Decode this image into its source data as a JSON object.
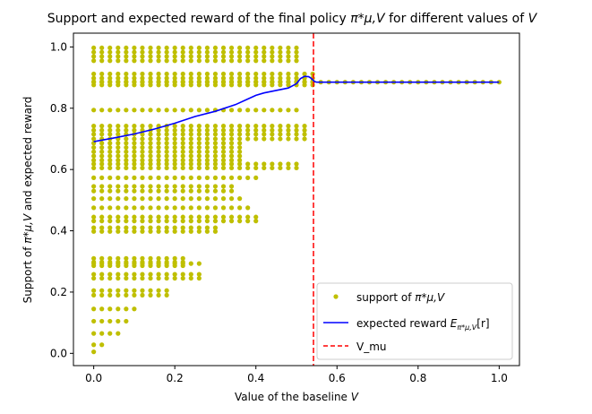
{
  "chart_data": {
    "type": "scatter",
    "title_prefix": "Support and expected reward of the final policy ",
    "title_symbol": "π*μ,V",
    "title_suffix": " for different values of ",
    "title_var": "V",
    "xlabel_prefix": "Value of the baseline ",
    "xlabel_var": "V",
    "ylabel_prefix": "Support of ",
    "ylabel_symbol": "π*μ,V",
    "ylabel_suffix": " and expected reward",
    "xlim": [
      -0.05,
      1.05
    ],
    "ylim": [
      -0.04,
      1.045
    ],
    "x_ticks": [
      0.0,
      0.2,
      0.4,
      0.6,
      0.8,
      1.0
    ],
    "x_tick_labels": [
      "0.0",
      "0.2",
      "0.4",
      "0.6",
      "0.8",
      "1.0"
    ],
    "y_ticks": [
      0.0,
      0.2,
      0.4,
      0.6,
      0.8,
      1.0
    ],
    "y_tick_labels": [
      "0.0",
      "0.2",
      "0.4",
      "0.6",
      "0.8",
      "1.0"
    ],
    "grid": false,
    "legend_position": "lower-right",
    "colors": {
      "support": "#bfbf00",
      "expected_reward": "#0000ff",
      "v_mu": "#ff0000"
    },
    "legend": [
      {
        "label_prefix": "support of ",
        "label_symbol": "π*μ,V",
        "kind": "scatter"
      },
      {
        "label_prefix": "expected reward ",
        "label_symbol": "E",
        "label_sub": "π*μ,V",
        "label_suffix": "[r]",
        "kind": "line"
      },
      {
        "label_prefix": "V_mu",
        "kind": "dashed"
      }
    ],
    "v_mu": 0.542,
    "support_groups": [
      {
        "xmax": 0.5,
        "levels": [
          0.997,
          0.983,
          0.969,
          0.955
        ]
      },
      {
        "xmax": 0.54,
        "levels": [
          0.912,
          0.898,
          0.887,
          0.876
        ]
      },
      {
        "xmax": 1.0,
        "levels": [
          0.885
        ]
      },
      {
        "xmax": 0.5,
        "levels": [
          0.794
        ]
      },
      {
        "xmax": 0.52,
        "levels": [
          0.742,
          0.728,
          0.715,
          0.7
        ]
      },
      {
        "xmax": 0.36,
        "levels": [
          0.686,
          0.672,
          0.658,
          0.644,
          0.63
        ]
      },
      {
        "xmax": 0.49,
        "levels": [
          0.618,
          0.605
        ]
      },
      {
        "xmax": 0.4,
        "levels": [
          0.573
        ]
      },
      {
        "xmax": 0.33,
        "levels": [
          0.545,
          0.53
        ]
      },
      {
        "xmax": 0.35,
        "levels": [
          0.505
        ]
      },
      {
        "xmax": 0.37,
        "levels": [
          0.475
        ]
      },
      {
        "xmax": 0.39,
        "levels": [
          0.445,
          0.432
        ]
      },
      {
        "xmax": 0.3,
        "levels": [
          0.41,
          0.398
        ]
      },
      {
        "xmax": 0.21,
        "levels": [
          0.31,
          0.298,
          0.286
        ]
      },
      {
        "xmax": 0.25,
        "levels": [
          0.293
        ]
      },
      {
        "xmax": 0.25,
        "levels": [
          0.258,
          0.245
        ]
      },
      {
        "xmax": 0.17,
        "levels": [
          0.205,
          0.19
        ]
      },
      {
        "xmax": 0.1,
        "levels": [
          0.145
        ]
      },
      {
        "xmax": 0.08,
        "levels": [
          0.105
        ]
      },
      {
        "xmax": 0.06,
        "levels": [
          0.065
        ]
      },
      {
        "xmax": 0.02,
        "levels": [
          0.028
        ]
      },
      {
        "xmax": 0.0,
        "levels": [
          0.005
        ]
      }
    ],
    "support_step": 0.02,
    "expected_reward": {
      "x": [
        0.0,
        0.05,
        0.1,
        0.15,
        0.2,
        0.25,
        0.3,
        0.35,
        0.38,
        0.4,
        0.42,
        0.45,
        0.48,
        0.5,
        0.51,
        0.52,
        0.53,
        0.535,
        0.54,
        0.545,
        0.55,
        0.6,
        0.7,
        0.8,
        0.9,
        1.0
      ],
      "y": [
        0.691,
        0.703,
        0.716,
        0.732,
        0.751,
        0.773,
        0.79,
        0.812,
        0.83,
        0.842,
        0.85,
        0.858,
        0.866,
        0.88,
        0.897,
        0.904,
        0.903,
        0.899,
        0.893,
        0.887,
        0.885,
        0.885,
        0.885,
        0.885,
        0.885,
        0.885
      ]
    }
  }
}
